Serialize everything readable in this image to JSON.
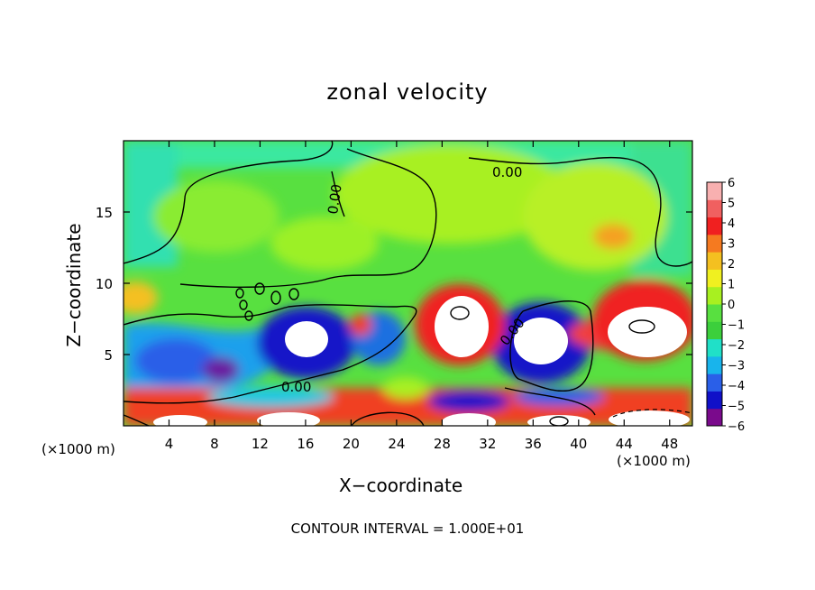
{
  "chart_data": {
    "type": "heatmap",
    "title": "zonal velocity",
    "xlabel": "X−coordinate",
    "ylabel": "Z−coordinate",
    "x_unit": "(×1000 m)",
    "y_unit": "(×1000 m)",
    "xlim": [
      0,
      50
    ],
    "ylim": [
      0,
      20
    ],
    "x_ticks": [
      4,
      8,
      12,
      16,
      20,
      24,
      28,
      32,
      36,
      40,
      44,
      48
    ],
    "y_ticks": [
      5,
      10,
      15
    ],
    "colorbar": {
      "min": -6,
      "max": 6,
      "labels": [
        "6",
        "5",
        "4",
        "3",
        "2",
        "1",
        "0",
        "−1",
        "−2",
        "−3",
        "−4",
        "−5",
        "−6"
      ],
      "colors": [
        "#7a0a8c",
        "#1010c8",
        "#2a5fe8",
        "#18b4ec",
        "#20e0c8",
        "#3ccf3c",
        "#58e040",
        "#a8f020",
        "#f0f020",
        "#f4c020",
        "#f57a20",
        "#f02020",
        "#f06060",
        "#f8b0b0"
      ]
    },
    "contour_labels": [
      "0.00",
      "0.00",
      "0.00",
      "0.00"
    ],
    "footer": "CONTOUR INTERVAL = 1.000E+01"
  }
}
